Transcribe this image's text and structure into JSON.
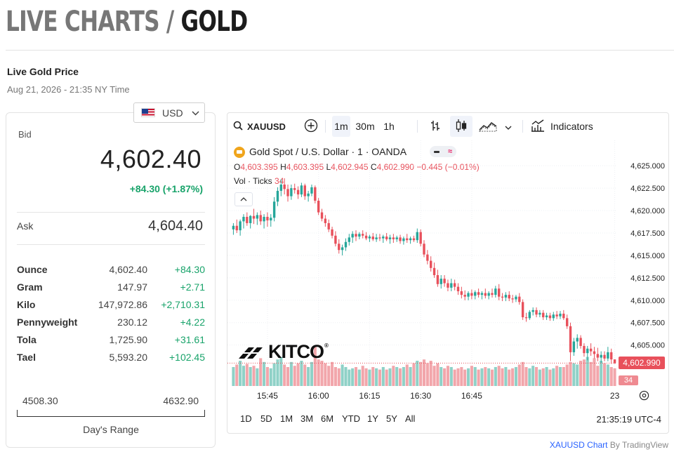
{
  "header": {
    "title_prefix": "LIVE CHARTS /",
    "title_main": "GOLD",
    "subtitle": "Live Gold Price",
    "timestamp": "Aug 21, 2026 - 21:35 NY Time"
  },
  "currency": {
    "label": "USD",
    "flag_icon": "us-flag-icon"
  },
  "bid": {
    "label": "Bid",
    "value": "4,602.40",
    "change": "+84.30 (+1.87%)"
  },
  "ask": {
    "label": "Ask",
    "value": "4,604.40"
  },
  "units": [
    {
      "name": "Ounce",
      "value": "4,602.40",
      "change": "+84.30"
    },
    {
      "name": "Gram",
      "value": "147.97",
      "change": "+2.71"
    },
    {
      "name": "Kilo",
      "value": "147,972.86",
      "change": "+2,710.31"
    },
    {
      "name": "Pennyweight",
      "value": "230.12",
      "change": "+4.22"
    },
    {
      "name": "Tola",
      "value": "1,725.90",
      "change": "+31.61"
    },
    {
      "name": "Tael",
      "value": "5,593.20",
      "change": "+102.45"
    }
  ],
  "days_range": {
    "low": "4508.30",
    "high": "4632.90",
    "label": "Day's Range"
  },
  "chart": {
    "symbol": "XAUUSD",
    "intervals": [
      "1m",
      "30m",
      "1h"
    ],
    "active_interval": "1m",
    "indicators_label": "Indicators",
    "legend_title": "Gold Spot / U.S. Dollar · 1 · OANDA",
    "ohlc": {
      "o_label": "O",
      "o": "4,603.395",
      "h_label": "H",
      "h": "4,603.395",
      "l_label": "L",
      "l": "4,602.945",
      "c_label": "C",
      "c": "4,602.990",
      "chg": "−0.445 (−0.01%)"
    },
    "volume_label": "Vol · Ticks",
    "volume_value": "34",
    "last_price": "4,602.990",
    "last_volume": "34",
    "ranges": [
      "1D",
      "5D",
      "1M",
      "3M",
      "6M",
      "YTD",
      "1Y",
      "5Y",
      "All"
    ],
    "clock": "21:35:19 UTC-4",
    "watermark": "KITCO",
    "colors": {
      "up": "#26a69a",
      "down": "#e8505b",
      "up_vol": "#8fd1c7",
      "down_vol": "#f2a6ab",
      "gold": "#f0a51c"
    }
  },
  "chart_data": {
    "type": "candlestick",
    "title": "Gold Spot / U.S. Dollar · 1 · OANDA",
    "ylim": [
      4602.0,
      4626.5
    ],
    "y_ticks": [
      "4,625.000",
      "4,622.500",
      "4,620.000",
      "4,617.500",
      "4,615.000",
      "4,612.500",
      "4,610.000",
      "4,607.500",
      "4,605.000"
    ],
    "x_ticks": [
      "15:45",
      "16:00",
      "16:15",
      "16:30",
      "16:45",
      "23"
    ],
    "candles_start": "15:35",
    "interval_minutes": 1,
    "candles": [
      [
        4617.9,
        4618.6,
        4617.3,
        4618.3
      ],
      [
        4618.3,
        4619.0,
        4617.5,
        4617.8
      ],
      [
        4617.8,
        4619.0,
        4617.2,
        4618.8
      ],
      [
        4618.8,
        4619.6,
        4618.0,
        4619.3
      ],
      [
        4619.3,
        4619.8,
        4618.3,
        4618.6
      ],
      [
        4618.6,
        4619.5,
        4618.0,
        4619.4
      ],
      [
        4619.4,
        4620.2,
        4618.5,
        4619.1
      ],
      [
        4619.1,
        4619.8,
        4618.4,
        4619.5
      ],
      [
        4619.5,
        4620.0,
        4618.4,
        4618.8
      ],
      [
        4618.8,
        4619.6,
        4618.0,
        4619.3
      ],
      [
        4619.3,
        4619.8,
        4618.2,
        4618.9
      ],
      [
        4618.9,
        4619.6,
        4618.2,
        4619.2
      ],
      [
        4619.2,
        4621.5,
        4618.8,
        4621.0
      ],
      [
        4621.0,
        4622.6,
        4620.5,
        4622.2
      ],
      [
        4622.2,
        4623.5,
        4621.6,
        4622.9
      ],
      [
        4622.9,
        4623.6,
        4621.8,
        4622.4
      ],
      [
        4622.4,
        4622.9,
        4621.0,
        4621.6
      ],
      [
        4621.6,
        4622.9,
        4621.2,
        4622.5
      ],
      [
        4622.5,
        4623.0,
        4621.9,
        4622.3
      ],
      [
        4622.3,
        4622.7,
        4621.3,
        4621.8
      ],
      [
        4621.8,
        4623.1,
        4621.5,
        4622.8
      ],
      [
        4622.8,
        4623.0,
        4621.2,
        4621.6
      ],
      [
        4621.6,
        4622.2,
        4621.0,
        4621.9
      ],
      [
        4621.9,
        4622.9,
        4621.6,
        4622.6
      ],
      [
        4622.6,
        4622.8,
        4620.8,
        4621.1
      ],
      [
        4621.1,
        4621.4,
        4619.5,
        4619.8
      ],
      [
        4619.8,
        4620.2,
        4618.8,
        4619.1
      ],
      [
        4619.1,
        4619.5,
        4618.2,
        4618.6
      ],
      [
        4618.6,
        4619.0,
        4617.6,
        4617.9
      ],
      [
        4617.9,
        4618.2,
        4616.9,
        4617.2
      ],
      [
        4617.2,
        4617.7,
        4616.0,
        4616.3
      ],
      [
        4616.3,
        4616.8,
        4615.2,
        4615.6
      ],
      [
        4615.6,
        4616.2,
        4615.0,
        4615.9
      ],
      [
        4615.9,
        4616.9,
        4615.5,
        4616.5
      ],
      [
        4616.5,
        4617.4,
        4616.1,
        4617.0
      ],
      [
        4617.0,
        4617.7,
        4616.4,
        4617.4
      ],
      [
        4617.4,
        4617.8,
        4616.6,
        4617.1
      ],
      [
        4617.1,
        4617.6,
        4616.8,
        4617.4
      ],
      [
        4617.4,
        4617.8,
        4616.9,
        4617.2
      ],
      [
        4617.2,
        4617.6,
        4616.7,
        4616.9
      ],
      [
        4616.9,
        4617.3,
        4616.5,
        4617.1
      ],
      [
        4617.1,
        4617.5,
        4616.6,
        4616.8
      ],
      [
        4616.8,
        4617.4,
        4616.5,
        4617.0
      ],
      [
        4617.0,
        4617.4,
        4616.6,
        4616.9
      ],
      [
        4616.9,
        4617.3,
        4616.4,
        4617.1
      ],
      [
        4617.1,
        4617.5,
        4616.6,
        4616.8
      ],
      [
        4616.8,
        4617.3,
        4616.3,
        4617.0
      ],
      [
        4617.0,
        4617.4,
        4616.4,
        4616.8
      ],
      [
        4616.8,
        4617.2,
        4616.5,
        4617.0
      ],
      [
        4617.0,
        4617.3,
        4616.3,
        4616.6
      ],
      [
        4616.6,
        4617.1,
        4616.2,
        4616.9
      ],
      [
        4616.9,
        4617.4,
        4616.4,
        4616.7
      ],
      [
        4616.7,
        4617.1,
        4616.3,
        4616.9
      ],
      [
        4616.9,
        4617.2,
        4616.5,
        4616.7
      ],
      [
        4616.7,
        4618.0,
        4616.4,
        4617.6
      ],
      [
        4617.6,
        4617.9,
        4616.0,
        4616.3
      ],
      [
        4616.3,
        4616.7,
        4614.8,
        4615.1
      ],
      [
        4615.1,
        4615.6,
        4614.0,
        4614.4
      ],
      [
        4614.4,
        4614.9,
        4613.2,
        4613.6
      ],
      [
        4613.6,
        4614.2,
        4612.5,
        4612.8
      ],
      [
        4612.8,
        4613.4,
        4611.5,
        4611.8
      ],
      [
        4611.8,
        4612.8,
        4611.3,
        4612.4
      ],
      [
        4612.4,
        4612.8,
        4611.5,
        4611.9
      ],
      [
        4611.9,
        4612.3,
        4611.0,
        4611.4
      ],
      [
        4611.4,
        4612.4,
        4611.0,
        4611.9
      ],
      [
        4611.9,
        4612.3,
        4611.1,
        4611.5
      ],
      [
        4611.5,
        4611.9,
        4610.6,
        4611.0
      ],
      [
        4611.0,
        4611.5,
        4610.2,
        4610.6
      ],
      [
        4610.6,
        4611.1,
        4610.0,
        4610.4
      ],
      [
        4610.4,
        4611.0,
        4610.0,
        4610.8
      ],
      [
        4610.8,
        4611.2,
        4610.1,
        4610.5
      ],
      [
        4610.5,
        4611.1,
        4610.1,
        4610.9
      ],
      [
        4610.9,
        4611.3,
        4610.3,
        4610.6
      ],
      [
        4610.6,
        4611.0,
        4610.1,
        4610.8
      ],
      [
        4610.8,
        4611.3,
        4610.2,
        4610.5
      ],
      [
        4610.5,
        4611.0,
        4610.1,
        4610.8
      ],
      [
        4610.8,
        4611.3,
        4610.3,
        4610.6
      ],
      [
        4610.6,
        4611.6,
        4610.3,
        4611.3
      ],
      [
        4611.3,
        4611.8,
        4610.0,
        4610.4
      ],
      [
        4610.4,
        4610.8,
        4609.9,
        4610.3
      ],
      [
        4610.3,
        4610.9,
        4609.9,
        4610.6
      ],
      [
        4610.6,
        4611.0,
        4609.9,
        4610.2
      ],
      [
        4610.2,
        4610.6,
        4609.7,
        4610.1
      ],
      [
        4610.1,
        4610.6,
        4609.8,
        4610.4
      ],
      [
        4610.4,
        4610.8,
        4609.5,
        4609.8
      ],
      [
        4609.8,
        4610.1,
        4607.8,
        4608.1
      ],
      [
        4608.1,
        4608.6,
        4607.6,
        4608.0
      ],
      [
        4608.0,
        4608.9,
        4607.8,
        4608.7
      ],
      [
        4608.7,
        4609.2,
        4608.3,
        4608.9
      ],
      [
        4608.9,
        4609.2,
        4608.1,
        4608.4
      ],
      [
        4608.4,
        4608.9,
        4608.1,
        4608.6
      ],
      [
        4608.6,
        4608.9,
        4607.8,
        4608.1
      ],
      [
        4608.1,
        4608.6,
        4607.8,
        4608.3
      ],
      [
        4608.3,
        4608.6,
        4607.7,
        4608.0
      ],
      [
        4608.0,
        4608.7,
        4607.7,
        4608.4
      ],
      [
        4608.4,
        4608.8,
        4607.9,
        4608.2
      ],
      [
        4608.2,
        4608.8,
        4607.9,
        4608.5
      ],
      [
        4608.5,
        4608.9,
        4607.8,
        4608.0
      ],
      [
        4608.0,
        4608.4,
        4606.8,
        4607.1
      ],
      [
        4607.1,
        4607.5,
        4603.2,
        4604.2
      ],
      [
        4604.2,
        4605.8,
        4603.8,
        4605.4
      ],
      [
        4605.4,
        4606.2,
        4604.6,
        4605.8
      ],
      [
        4605.8,
        4606.1,
        4604.6,
        4604.9
      ],
      [
        4604.9,
        4605.2,
        4603.7,
        4604.1
      ],
      [
        4604.1,
        4604.9,
        4603.3,
        4604.6
      ],
      [
        4604.6,
        4605.2,
        4603.8,
        4604.3
      ],
      [
        4604.3,
        4604.8,
        4603.5,
        4604.0
      ],
      [
        4604.0,
        4604.7,
        4603.2,
        4603.6
      ],
      [
        4603.6,
        4604.3,
        4603.0,
        4603.9
      ],
      [
        4603.9,
        4604.3,
        4603.2,
        4603.5
      ],
      [
        4603.5,
        4604.8,
        4603.2,
        4604.2
      ],
      [
        4604.2,
        4604.6,
        4602.9,
        4603.4
      ],
      [
        4603.4,
        4603.4,
        4602.9,
        4603.0
      ]
    ],
    "volume_ylim": [
      0,
      100
    ],
    "volumes": [
      30,
      34,
      40,
      32,
      35,
      30,
      32,
      28,
      44,
      38,
      30,
      28,
      36,
      42,
      46,
      34,
      30,
      38,
      32,
      36,
      40,
      34,
      30,
      38,
      62,
      42,
      40,
      36,
      32,
      38,
      30,
      28,
      34,
      30,
      26,
      28,
      30,
      26,
      32,
      28,
      26,
      30,
      28,
      26,
      30,
      26,
      28,
      32,
      30,
      28,
      30,
      34,
      30,
      36,
      40,
      38,
      42,
      36,
      40,
      32,
      36,
      30,
      28,
      32,
      30,
      26,
      28,
      30,
      26,
      28,
      32,
      30,
      26,
      28,
      30,
      28,
      26,
      30,
      32,
      28,
      30,
      26,
      28,
      30,
      34,
      38,
      30,
      28,
      32,
      30,
      26,
      28,
      30,
      26,
      28,
      32,
      30,
      30,
      34,
      38,
      36,
      34,
      40,
      42,
      46,
      38,
      44,
      32,
      40,
      36,
      34,
      30,
      28
    ]
  },
  "footer": {
    "link": "XAUUSD Chart",
    "by": "By TradingView"
  }
}
